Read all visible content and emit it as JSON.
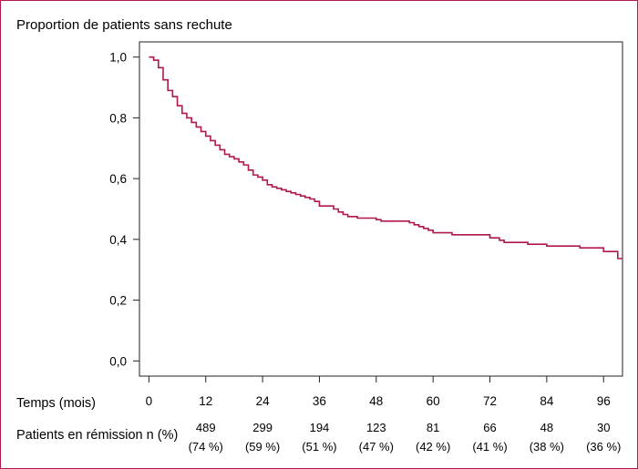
{
  "chart_data": {
    "type": "line",
    "title": "Proportion de patients sans rechute",
    "xlabel": "Temps (mois)",
    "ylabel": "",
    "xlim": [
      -2,
      100
    ],
    "ylim": [
      -0.05,
      1.05
    ],
    "x_ticks": [
      0,
      12,
      24,
      36,
      48,
      60,
      72,
      84,
      96
    ],
    "x_tick_labels": [
      "0",
      "12",
      "24",
      "36",
      "48",
      "60",
      "72",
      "84",
      "96"
    ],
    "y_ticks": [
      0.0,
      0.2,
      0.4,
      0.6,
      0.8,
      1.0
    ],
    "y_tick_labels": [
      "0,0",
      "0,2",
      "0,4",
      "0,6",
      "0,8",
      "1,0"
    ],
    "grid": false,
    "line_color": "#b0174f",
    "series": [
      {
        "step": true,
        "x": [
          0,
          1,
          2,
          3,
          4,
          5,
          6,
          7,
          8,
          9,
          10,
          11,
          12,
          13,
          14,
          15,
          16,
          17,
          18,
          19,
          20,
          21,
          22,
          23,
          24,
          25,
          26,
          27,
          28,
          29,
          30,
          31,
          32,
          33,
          34,
          35,
          36,
          39,
          40,
          41,
          42,
          44,
          48,
          49,
          55,
          56,
          57,
          58,
          59,
          60,
          64,
          72,
          74,
          75,
          80,
          84,
          91,
          96,
          99,
          100
        ],
        "y": [
          1.0,
          0.99,
          0.965,
          0.925,
          0.89,
          0.87,
          0.84,
          0.815,
          0.8,
          0.785,
          0.77,
          0.755,
          0.74,
          0.725,
          0.71,
          0.695,
          0.68,
          0.672,
          0.665,
          0.655,
          0.645,
          0.628,
          0.612,
          0.605,
          0.595,
          0.58,
          0.573,
          0.568,
          0.563,
          0.558,
          0.553,
          0.548,
          0.543,
          0.538,
          0.533,
          0.525,
          0.51,
          0.5,
          0.49,
          0.482,
          0.475,
          0.47,
          0.465,
          0.46,
          0.455,
          0.448,
          0.442,
          0.436,
          0.43,
          0.422,
          0.415,
          0.405,
          0.397,
          0.39,
          0.384,
          0.378,
          0.372,
          0.36,
          0.337,
          0.337
        ]
      }
    ],
    "risk_table": {
      "label": "Patients en rémission n (%)",
      "entries": [
        {
          "x": 12,
          "n": "489",
          "pct": "(74 %)"
        },
        {
          "x": 24,
          "n": "299",
          "pct": "(59 %)"
        },
        {
          "x": 36,
          "n": "194",
          "pct": "(51 %)"
        },
        {
          "x": 48,
          "n": "123",
          "pct": "(47 %)"
        },
        {
          "x": 60,
          "n": "81",
          "pct": "(42 %)"
        },
        {
          "x": 72,
          "n": "66",
          "pct": "(41 %)"
        },
        {
          "x": 84,
          "n": "48",
          "pct": "(38 %)"
        },
        {
          "x": 96,
          "n": "30",
          "pct": "(36 %)"
        }
      ]
    }
  }
}
